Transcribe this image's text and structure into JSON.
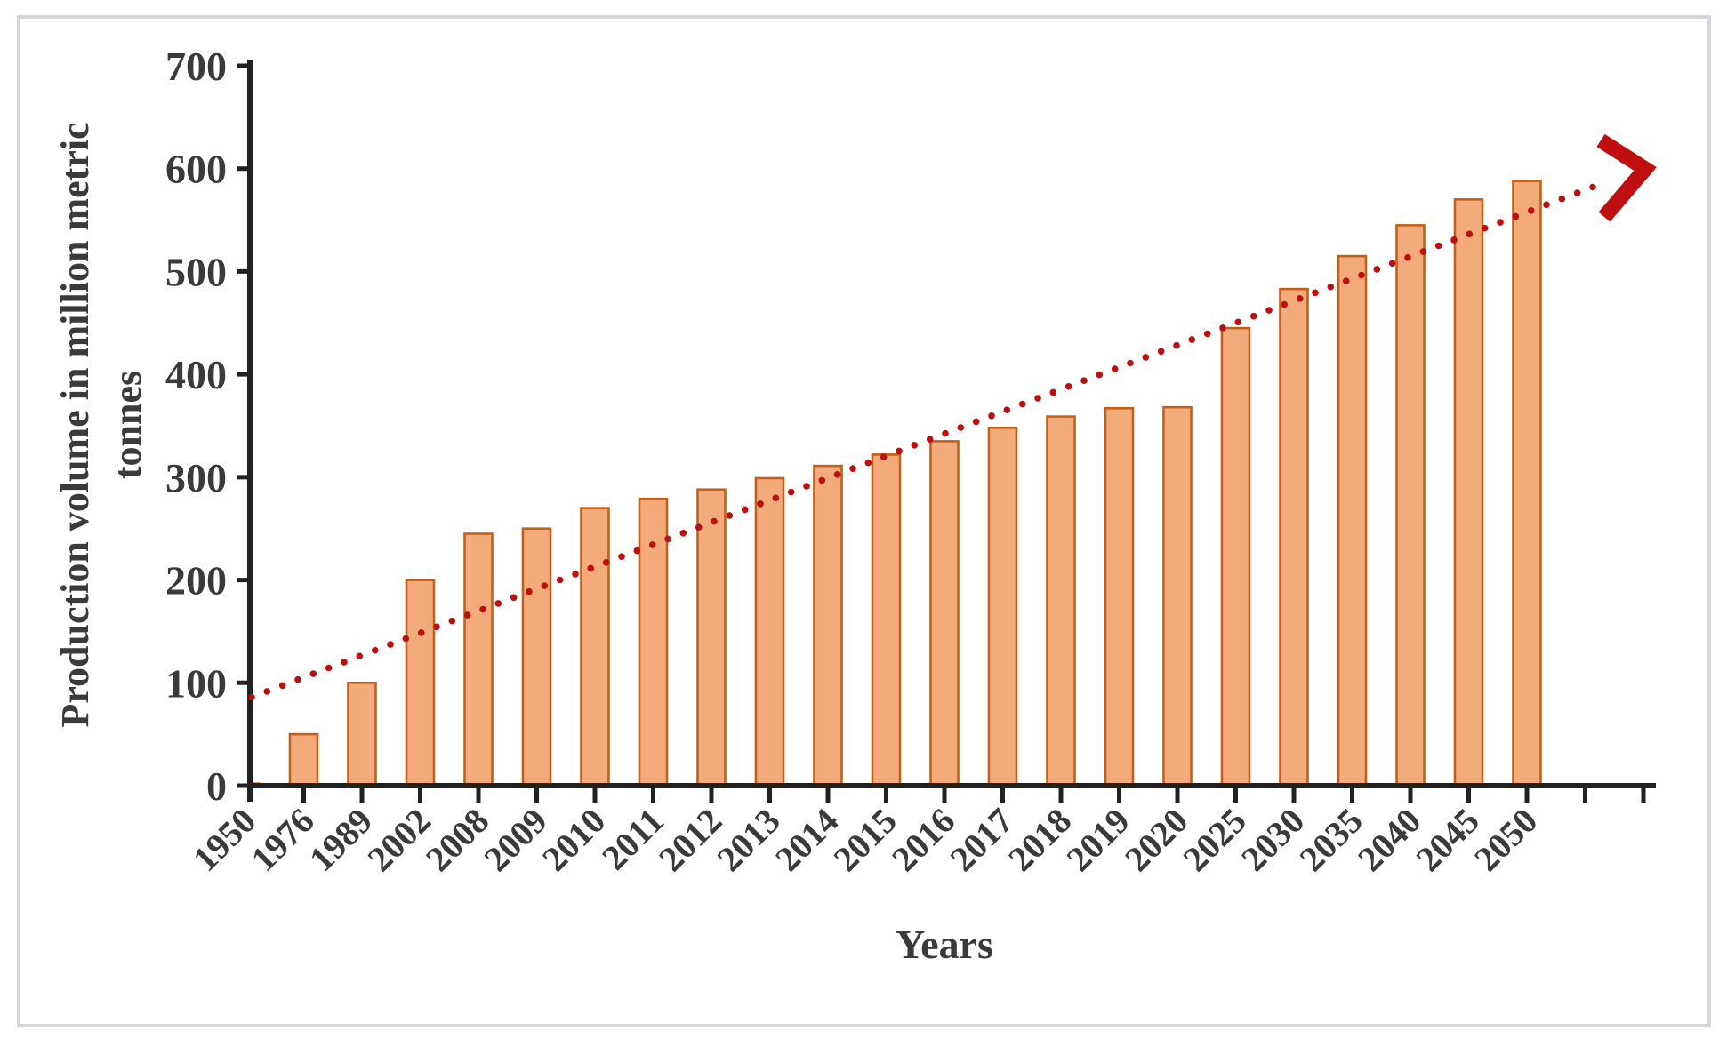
{
  "figure": {
    "background": "#ffffff",
    "border_color": "#d5d5da"
  },
  "chart_data": {
    "type": "bar",
    "title": "",
    "xlabel": "Years",
    "ylabel": "Production volume in million metric tonnes",
    "ylabel_lines": [
      "Production volume in million metric",
      "tonnes"
    ],
    "categories": [
      "1950",
      "1976",
      "1989",
      "2002",
      "2008",
      "2009",
      "2010",
      "2011",
      "2012",
      "2013",
      "2014",
      "2015",
      "2016",
      "2017",
      "2018",
      "2019",
      "2020",
      "2025",
      "2030",
      "2035",
      "2040",
      "2045",
      "2050"
    ],
    "values": [
      2,
      50,
      100,
      200,
      245,
      250,
      270,
      279,
      288,
      299,
      311,
      322,
      335,
      348,
      359,
      367,
      368,
      445,
      483,
      515,
      545,
      570,
      588
    ],
    "y_ticks": [
      0,
      100,
      200,
      300,
      400,
      500,
      600,
      700
    ],
    "ylim": [
      0,
      700
    ],
    "grid": false,
    "legend": "none",
    "bar_fill": "#F4AB7C",
    "bar_border": "#C55F16",
    "axis_color": "#212121",
    "text_color": "#3A3A3A",
    "trend": {
      "style": "dotted",
      "color": "#C00E0E",
      "arrow": true,
      "start_value": 86,
      "end_value": 582,
      "description": "upward dotted trend line with arrowhead"
    }
  }
}
